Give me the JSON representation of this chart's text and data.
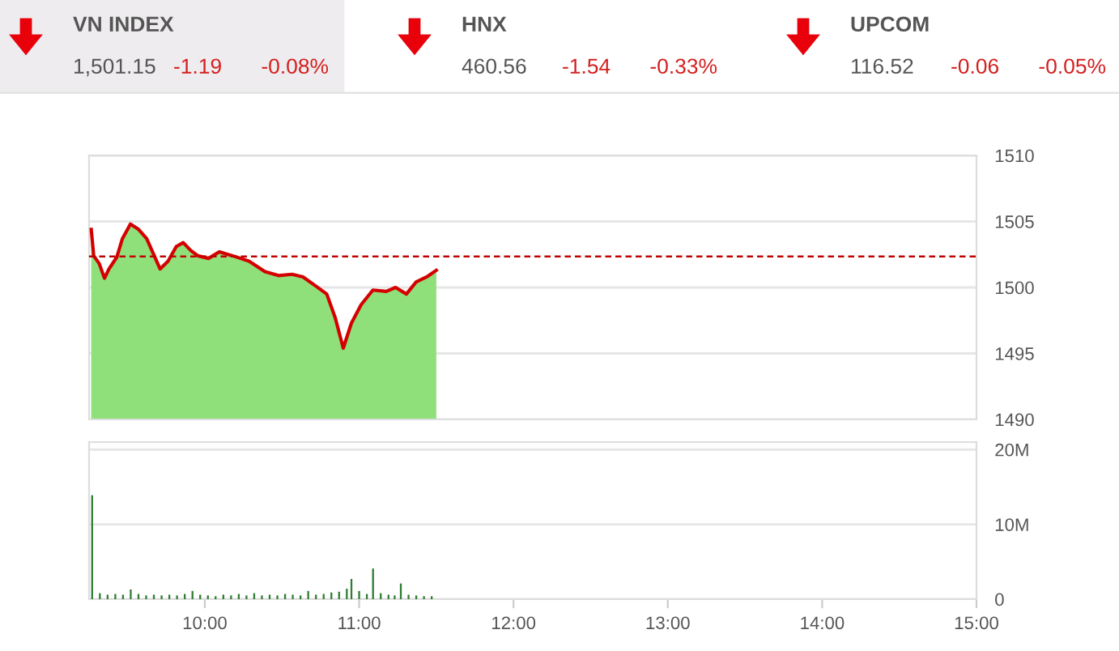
{
  "chart_data": [
    {
      "type": "other",
      "annotations": [
        "VN INDEX",
        "1,501.15",
        "-1.19",
        "-0.08%",
        "HNX",
        "460.56",
        "-1.54",
        "-0.33%",
        "UPCOM",
        "116.52",
        "-0.06",
        "-0.05%"
      ]
    },
    {
      "type": "area",
      "series": [
        {
          "type": "area",
          "color": "#8fe07a",
          "x": [
            9.264,
            9.28,
            9.316,
            9.35,
            9.379,
            9.43,
            9.466,
            9.518,
            9.571,
            9.623,
            9.665,
            9.71,
            9.762,
            9.815,
            9.86,
            9.909,
            9.955,
            10.024,
            10.094,
            10.18,
            10.286,
            10.39,
            10.478,
            10.565,
            10.636,
            10.72,
            10.79,
            10.845,
            10.897,
            10.95,
            11.013,
            11.089,
            11.176,
            11.236,
            11.306,
            11.368,
            11.438,
            11.5
          ],
          "values": [
            1504.4,
            1502.4,
            1501.8,
            1500.7,
            1501.4,
            1502.3,
            1503.7,
            1504.8,
            1504.4,
            1503.7,
            1502.6,
            1501.4,
            1502.0,
            1503.1,
            1503.4,
            1502.8,
            1502.4,
            1502.2,
            1502.7,
            1502.4,
            1502.0,
            1501.2,
            1500.9,
            1501.0,
            1500.8,
            1500.1,
            1499.5,
            1497.7,
            1495.4,
            1497.3,
            1498.7,
            1499.8,
            1499.7,
            1500.0,
            1499.5,
            1500.4,
            1500.8,
            1501.3
          ]
        },
        {
          "type": "line",
          "color": "#d40000",
          "x": [
            9.264,
            9.28,
            9.316,
            9.35,
            9.379,
            9.43,
            9.466,
            9.518,
            9.571,
            9.623,
            9.665,
            9.71,
            9.762,
            9.815,
            9.86,
            9.909,
            9.955,
            10.024,
            10.094,
            10.18,
            10.286,
            10.39,
            10.478,
            10.565,
            10.636,
            10.72,
            10.79,
            10.845,
            10.897,
            10.95,
            11.013,
            11.089,
            11.176,
            11.236,
            11.306,
            11.368,
            11.438,
            11.5
          ],
          "values": [
            1504.4,
            1502.4,
            1501.8,
            1500.7,
            1501.4,
            1502.3,
            1503.7,
            1504.8,
            1504.4,
            1503.7,
            1502.6,
            1501.4,
            1502.0,
            1503.1,
            1503.4,
            1502.8,
            1502.4,
            1502.2,
            1502.7,
            1502.4,
            1502.0,
            1501.2,
            1500.9,
            1501.0,
            1500.8,
            1500.1,
            1499.5,
            1497.7,
            1495.4,
            1497.3,
            1498.7,
            1499.8,
            1499.7,
            1500.0,
            1499.5,
            1500.4,
            1500.8,
            1501.3
          ]
        }
      ],
      "xlim": [
        9.25,
        15
      ],
      "ylim": [
        1490,
        1510
      ],
      "yticks": [
        1490,
        1495,
        1500,
        1505,
        1510
      ],
      "ref_lines": [
        {
          "axis": "y",
          "value": 1502.34,
          "color": "#c00000",
          "line_style": "dashed"
        }
      ],
      "grid": "y",
      "tick_labels": "y"
    },
    {
      "type": "bar",
      "series": [
        {
          "color": "#2e7d32",
          "x": [
            9.27,
            9.32,
            9.37,
            9.42,
            9.47,
            9.52,
            9.57,
            9.62,
            9.67,
            9.72,
            9.77,
            9.82,
            9.87,
            9.92,
            9.97,
            10.02,
            10.07,
            10.12,
            10.17,
            10.22,
            10.27,
            10.32,
            10.37,
            10.42,
            10.47,
            10.52,
            10.57,
            10.62,
            10.67,
            10.72,
            10.77,
            10.82,
            10.87,
            10.92,
            10.95,
            11.0,
            11.05,
            11.09,
            11.14,
            11.19,
            11.23,
            11.27,
            11.32,
            11.37,
            11.42,
            11.47
          ],
          "values": [
            13.9,
            0.8,
            0.6,
            0.7,
            0.6,
            1.3,
            0.7,
            0.5,
            0.6,
            0.5,
            0.6,
            0.5,
            0.7,
            1.1,
            0.6,
            0.5,
            0.4,
            0.6,
            0.5,
            0.7,
            0.5,
            0.8,
            0.5,
            0.6,
            0.5,
            0.7,
            0.6,
            0.5,
            1.1,
            0.6,
            0.7,
            0.9,
            1.0,
            1.4,
            2.7,
            1.1,
            0.7,
            4.1,
            0.8,
            0.6,
            0.5,
            2.1,
            0.6,
            0.5,
            0.4,
            0.4
          ]
        }
      ],
      "xlim": [
        9.25,
        15
      ],
      "ylim": [
        0,
        21
      ],
      "xticks": [
        {
          "value": 10,
          "label": "10:00"
        },
        {
          "value": 11,
          "label": "11:00"
        },
        {
          "value": 12,
          "label": "12:00"
        },
        {
          "value": 13,
          "label": "13:00"
        },
        {
          "value": 14,
          "label": "14:00"
        },
        {
          "value": 15,
          "label": "15:00"
        }
      ],
      "yticks": [
        0,
        {
          "value": 10,
          "label": "10M"
        },
        {
          "value": 20,
          "label": "20M"
        }
      ],
      "grid": "y"
    }
  ]
}
